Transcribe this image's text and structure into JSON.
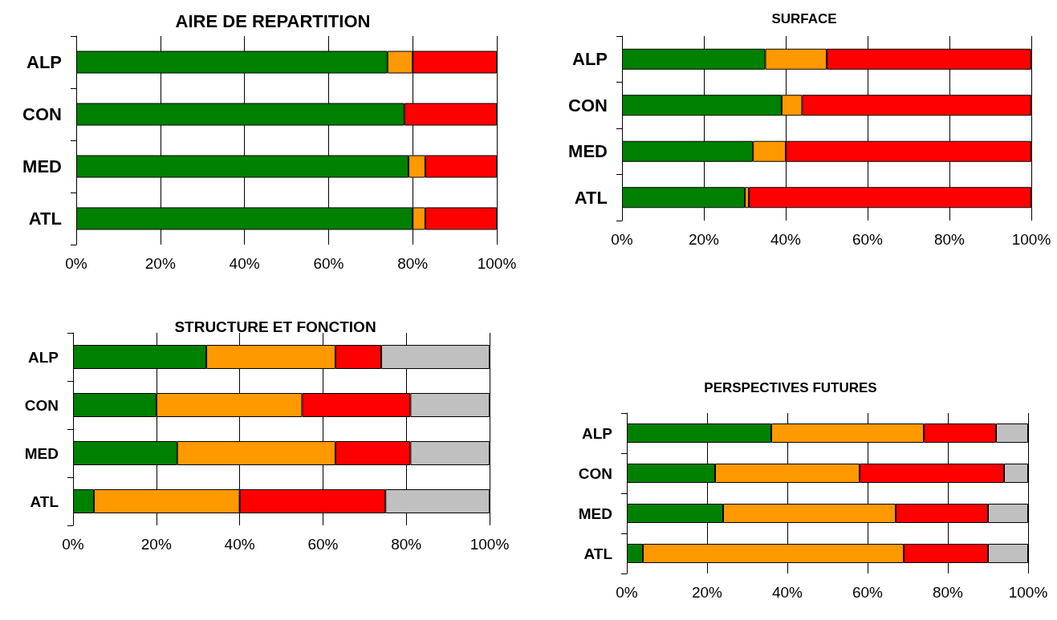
{
  "chart_data": [
    {
      "type": "bar",
      "title": "AIRE DE REPARTITION",
      "orientation": "horizontal",
      "stacked": true,
      "grid": "x",
      "categories": [
        "ALP",
        "CON",
        "MED",
        "ATL"
      ],
      "xlim": [
        0,
        100
      ],
      "xticks": [
        {
          "value": 0,
          "label": "0%"
        },
        {
          "value": 20,
          "label": "20%"
        },
        {
          "value": 40,
          "label": "40%"
        },
        {
          "value": 60,
          "label": "60%"
        },
        {
          "value": 80,
          "label": "80%"
        },
        {
          "value": 100,
          "label": "100%"
        }
      ],
      "series": [
        {
          "color": "#008000",
          "values": [
            74,
            78,
            79,
            80
          ]
        },
        {
          "color": "#ff9900",
          "values": [
            6,
            null,
            4,
            3
          ]
        },
        {
          "color": "#ff0000",
          "values": [
            20,
            22,
            17,
            17
          ]
        }
      ]
    },
    {
      "type": "bar",
      "title": "SURFACE",
      "orientation": "horizontal",
      "stacked": true,
      "grid": "x",
      "categories": [
        "ALP",
        "CON",
        "MED",
        "ATL"
      ],
      "xlim": [
        0,
        100
      ],
      "xticks": [
        {
          "value": 0,
          "label": "0%"
        },
        {
          "value": 20,
          "label": "20%"
        },
        {
          "value": 40,
          "label": "40%"
        },
        {
          "value": 60,
          "label": "60%"
        },
        {
          "value": 80,
          "label": "80%"
        },
        {
          "value": 100,
          "label": "100%"
        }
      ],
      "series": [
        {
          "color": "#008000",
          "values": [
            35,
            39,
            32,
            30
          ]
        },
        {
          "color": "#ff9900",
          "values": [
            15,
            5,
            8,
            1
          ]
        },
        {
          "color": "#ff0000",
          "values": [
            50,
            56,
            60,
            69
          ]
        }
      ]
    },
    {
      "type": "bar",
      "title": "STRUCTURE ET FONCTION",
      "orientation": "horizontal",
      "stacked": true,
      "grid": "x",
      "categories": [
        "ALP",
        "CON",
        "MED",
        "ATL"
      ],
      "xlim": [
        0,
        100
      ],
      "xticks": [
        {
          "value": 0,
          "label": "0%"
        },
        {
          "value": 20,
          "label": "20%"
        },
        {
          "value": 40,
          "label": "40%"
        },
        {
          "value": 60,
          "label": "60%"
        },
        {
          "value": 80,
          "label": "80%"
        },
        {
          "value": 100,
          "label": "100%"
        }
      ],
      "series": [
        {
          "color": "#008000",
          "values": [
            32,
            20,
            25,
            5
          ]
        },
        {
          "color": "#ff9900",
          "values": [
            31,
            35,
            38,
            35
          ]
        },
        {
          "color": "#ff0000",
          "values": [
            11,
            26,
            18,
            35
          ]
        },
        {
          "color": "#c0c0c0",
          "values": [
            26,
            19,
            19,
            25
          ]
        }
      ]
    },
    {
      "type": "bar",
      "title": "PERSPECTIVES FUTURES",
      "orientation": "horizontal",
      "stacked": true,
      "grid": "x",
      "categories": [
        "ALP",
        "CON",
        "MED",
        "ATL"
      ],
      "xlim": [
        0,
        100
      ],
      "xticks": [
        {
          "value": 0,
          "label": "0%"
        },
        {
          "value": 20,
          "label": "20%"
        },
        {
          "value": 40,
          "label": "40%"
        },
        {
          "value": 60,
          "label": "60%"
        },
        {
          "value": 80,
          "label": "80%"
        },
        {
          "value": 100,
          "label": "100%"
        }
      ],
      "series": [
        {
          "color": "#008000",
          "values": [
            36,
            22,
            24,
            4
          ]
        },
        {
          "color": "#ff9900",
          "values": [
            38,
            36,
            43,
            65
          ]
        },
        {
          "color": "#ff0000",
          "values": [
            18,
            36,
            23,
            21
          ]
        },
        {
          "color": "#c0c0c0",
          "values": [
            8,
            6,
            10,
            10
          ]
        }
      ]
    }
  ]
}
